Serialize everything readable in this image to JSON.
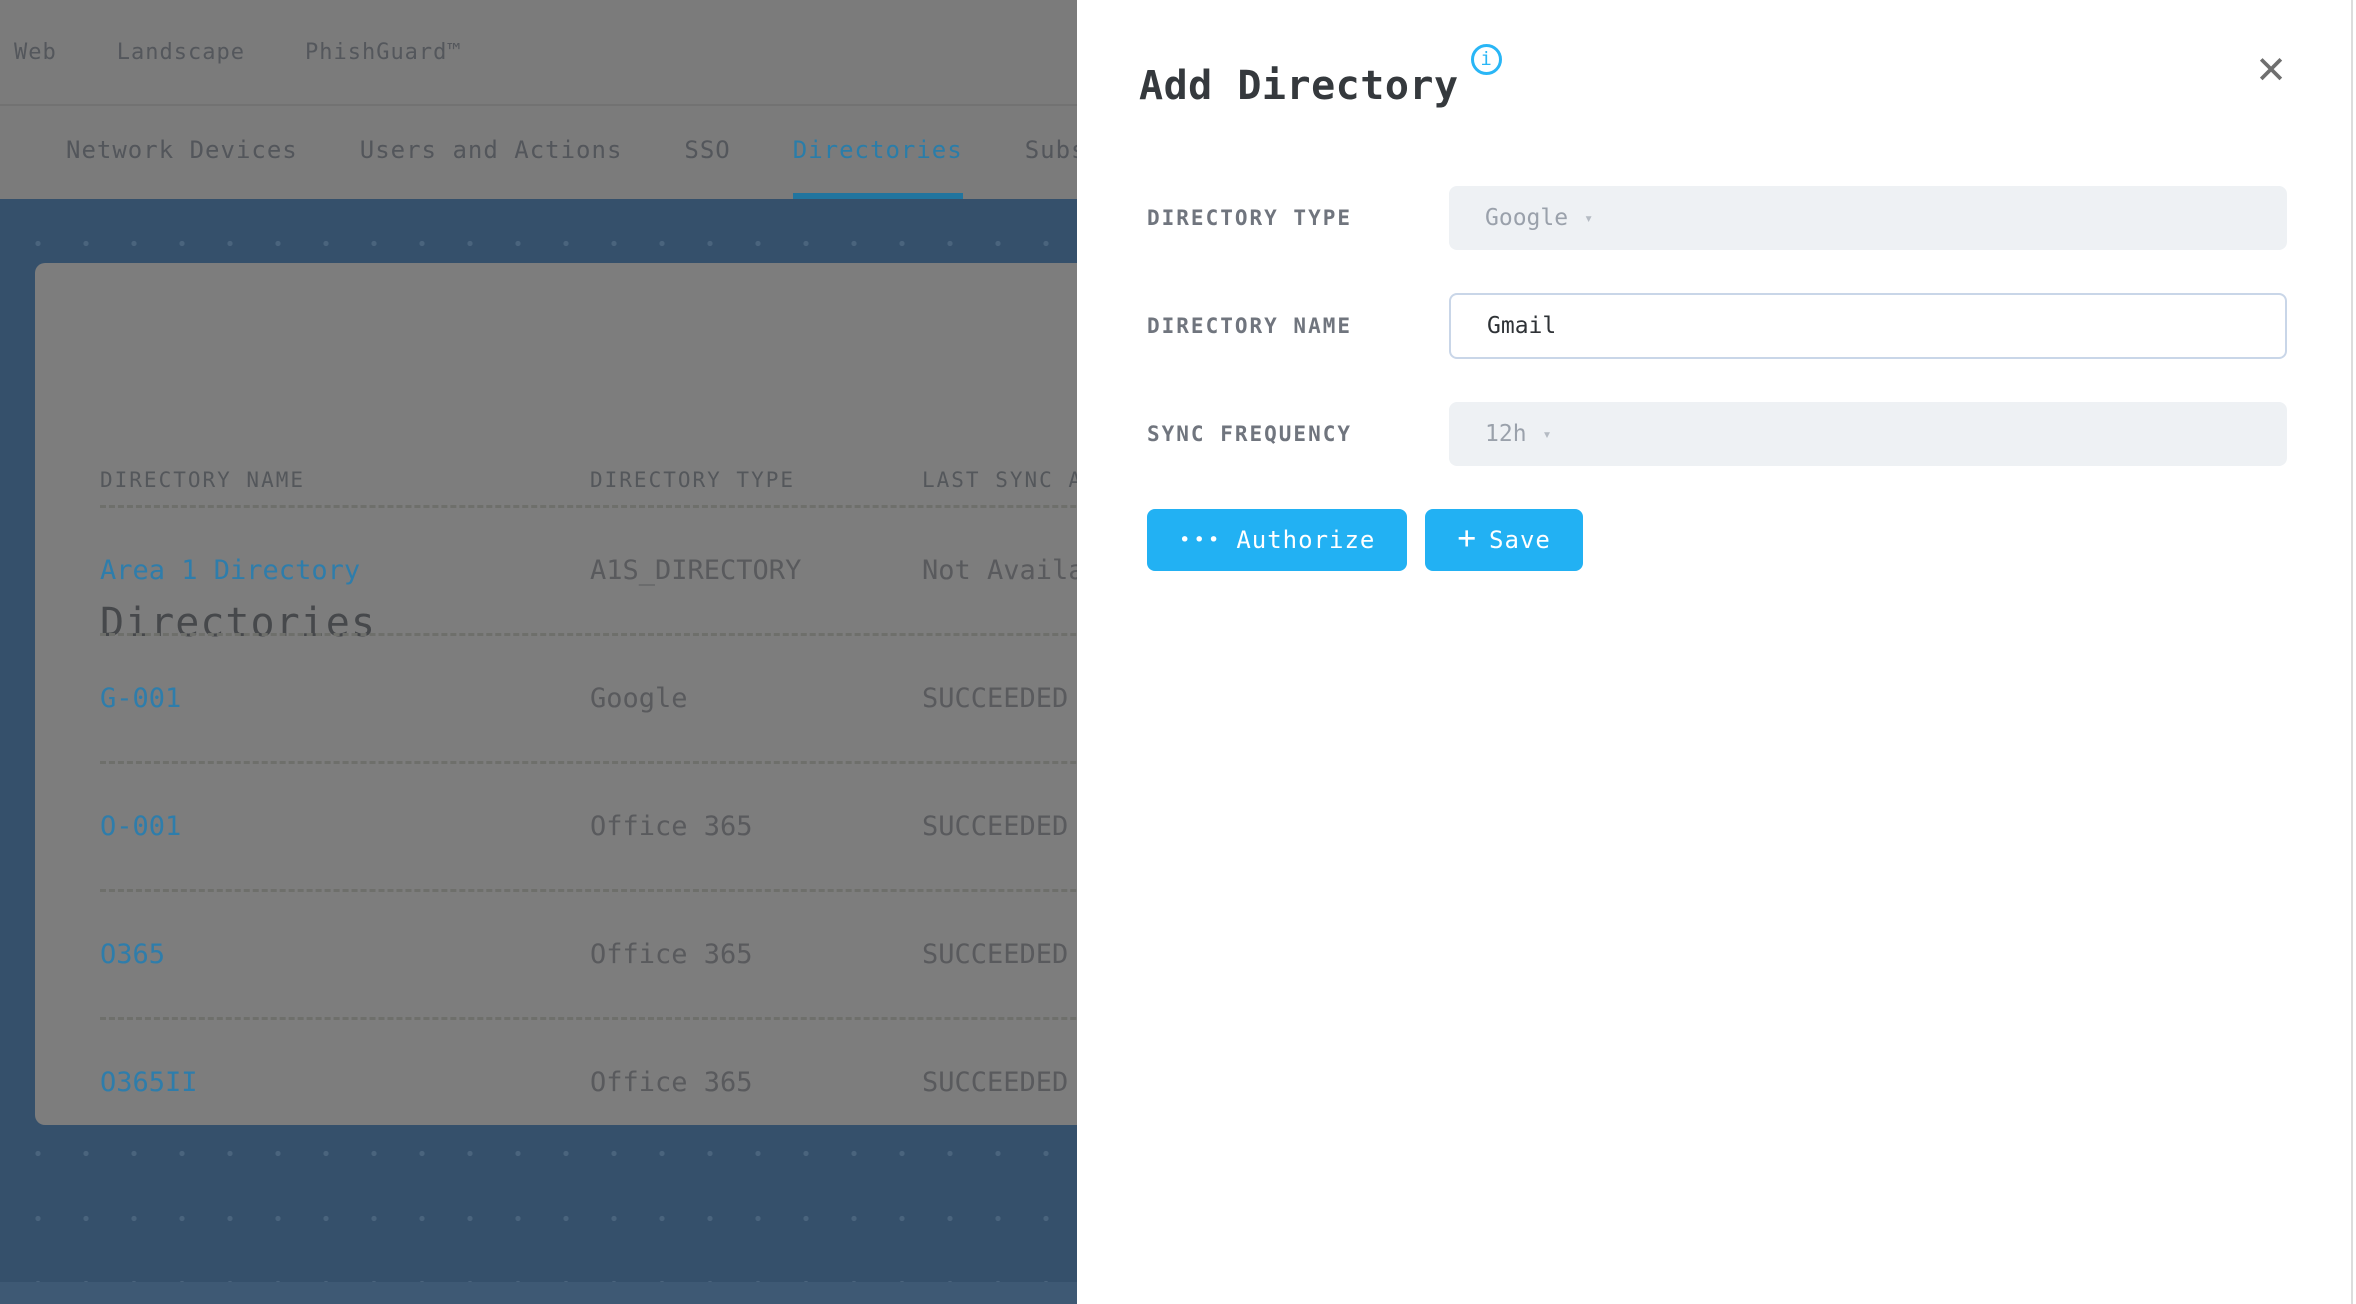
{
  "colors": {
    "accent_blue": "#22b1f3",
    "info_icon_blue": "#29b6f6",
    "active_tab_blue": "#2a7da9",
    "link_blue": "#2e7dab",
    "page_background_blue": "#35506b"
  },
  "topnav": {
    "items": [
      {
        "label": "Web"
      },
      {
        "label": "Landscape"
      },
      {
        "label": "PhishGuard™"
      }
    ]
  },
  "tabs": {
    "items": [
      {
        "label": "Network Devices",
        "active": false
      },
      {
        "label": "Users and Actions",
        "active": false
      },
      {
        "label": "SSO",
        "active": false
      },
      {
        "label": "Directories",
        "active": true
      },
      {
        "label": "Subscri",
        "active": false
      }
    ]
  },
  "directories_panel": {
    "title": "Directories",
    "columns": [
      "DIRECTORY NAME",
      "DIRECTORY TYPE",
      "LAST SYNC A"
    ],
    "rows": [
      {
        "name": "Area 1 Directory",
        "type": "A1S_DIRECTORY",
        "status": "Not Availa"
      },
      {
        "name": "G-001",
        "type": "Google",
        "status": "SUCCEEDED"
      },
      {
        "name": "O-001",
        "type": "Office 365",
        "status": "SUCCEEDED"
      },
      {
        "name": "O365",
        "type": "Office 365",
        "status": "SUCCEEDED"
      },
      {
        "name": "O365II",
        "type": "Office 365",
        "status": "SUCCEEDED"
      }
    ]
  },
  "modal": {
    "title": "Add Directory",
    "fields": {
      "directory_type": {
        "label": "DIRECTORY TYPE",
        "value": "Google"
      },
      "directory_name": {
        "label": "DIRECTORY NAME",
        "value": "Gmail"
      },
      "sync_frequency": {
        "label": "SYNC FREQUENCY",
        "value": "12h"
      }
    },
    "buttons": {
      "authorize": "Authorize",
      "save": "Save"
    }
  },
  "icons": {
    "close": "✕",
    "info": "i",
    "caret_down": "▾",
    "authorize_dots": "•••",
    "plus": "+"
  }
}
